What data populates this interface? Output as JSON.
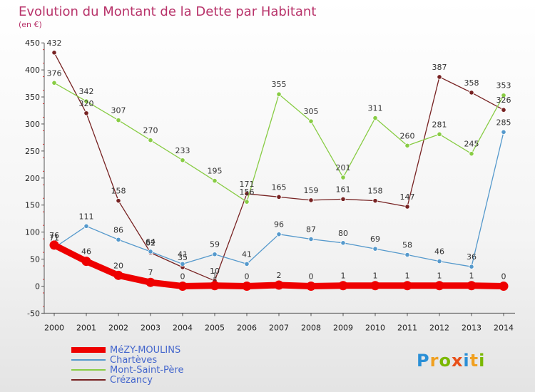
{
  "header": {
    "title": "Evolution du Montant de la Dette par Habitant",
    "unit": "(en €)"
  },
  "logo": {
    "text": "Proxiti"
  },
  "chart_data": {
    "type": "line",
    "title": "Evolution du Montant de la Dette par Habitant",
    "ylabel": "(en €)",
    "xlabel": "",
    "ylim": [
      -50,
      450
    ],
    "yticks": [
      -50,
      0,
      50,
      100,
      150,
      200,
      250,
      300,
      350,
      400,
      450
    ],
    "grid": false,
    "legend_position": "bottom-left",
    "categories": [
      "2000",
      "2001",
      "2002",
      "2003",
      "2004",
      "2005",
      "2006",
      "2007",
      "2008",
      "2009",
      "2010",
      "2011",
      "2012",
      "2013",
      "2014"
    ],
    "series": [
      {
        "name": "MéZY-MOULINS",
        "color": "#ee0000",
        "values": [
          76,
          46,
          20,
          7,
          0,
          1,
          0,
          2,
          0,
          1,
          1,
          1,
          1,
          1,
          0
        ]
      },
      {
        "name": "Chartèves",
        "color": "#5599cc",
        "values": [
          71,
          111,
          86,
          64,
          41,
          59,
          41,
          96,
          87,
          80,
          69,
          58,
          46,
          36,
          285
        ]
      },
      {
        "name": "Mont-Saint-Père",
        "color": "#88cc44",
        "values": [
          376,
          342,
          307,
          270,
          233,
          195,
          156,
          355,
          305,
          201,
          311,
          260,
          281,
          245,
          353
        ]
      },
      {
        "name": "Crézancy",
        "color": "#772222",
        "values": [
          432,
          320,
          158,
          62,
          35,
          10,
          171,
          165,
          159,
          161,
          158,
          147,
          387,
          358,
          326
        ]
      }
    ]
  }
}
